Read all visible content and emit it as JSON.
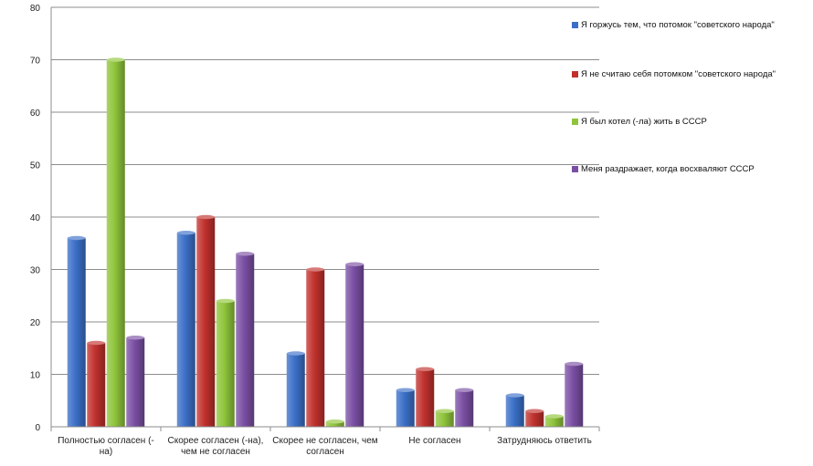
{
  "chart_data": {
    "type": "bar",
    "title": "",
    "xlabel": "",
    "ylabel": "",
    "ylim": [
      0,
      80
    ],
    "yticks": [
      0,
      10,
      20,
      30,
      40,
      50,
      60,
      70,
      80
    ],
    "grid": true,
    "legend_position": "right",
    "categories": [
      [
        "Полностью согласен (-",
        "на)"
      ],
      [
        "Скорее согласен (-на),",
        "чем не согласен"
      ],
      [
        "Скорее не согласен, чем",
        "согласен"
      ],
      [
        "Не согласен"
      ],
      [
        "Затрудняюсь ответить"
      ]
    ],
    "series": [
      {
        "name": "Я горжусь тем, что потомок \"советского народа\"",
        "color": "#3b6fc7",
        "values": [
          36,
          37,
          14,
          7,
          6
        ]
      },
      {
        "name": "Я не считаю себя потомком \"советского народа\"",
        "color": "#c0312d",
        "values": [
          16,
          40,
          30,
          11,
          3
        ]
      },
      {
        "name": "Я был котел (-ла) жить в СССР",
        "color": "#8fc43a",
        "values": [
          70,
          24,
          1,
          3,
          2
        ]
      },
      {
        "name": "Меня раздражает, когда восхваляют СССР",
        "color": "#7a4fa3",
        "values": [
          17,
          33,
          31,
          7,
          12
        ]
      }
    ]
  }
}
